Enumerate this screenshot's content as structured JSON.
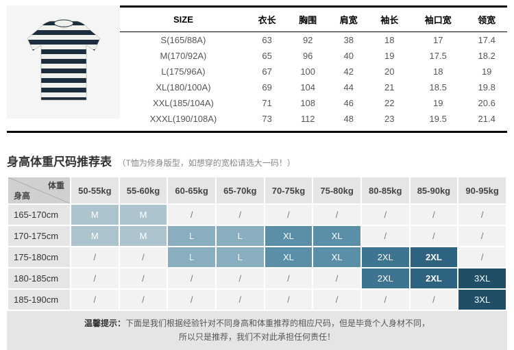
{
  "size_table": {
    "columns": [
      "SIZE",
      "衣长",
      "胸围",
      "肩宽",
      "袖长",
      "袖口宽",
      "领宽"
    ],
    "rows": [
      [
        "S(165/88A)",
        "63",
        "92",
        "38",
        "18",
        "17",
        "17.4"
      ],
      [
        "M(170/92A)",
        "65",
        "96",
        "40",
        "19",
        "17.5",
        "18.2"
      ],
      [
        "L(175/96A)",
        "67",
        "100",
        "42",
        "20",
        "18",
        "19"
      ],
      [
        "XL(180/100A)",
        "69",
        "104",
        "44",
        "21",
        "18.5",
        "19.8"
      ],
      [
        "XXL(185/104A)",
        "71",
        "108",
        "46",
        "22",
        "19",
        "20.6"
      ],
      [
        "XXXL(190/108A)",
        "73",
        "112",
        "48",
        "23",
        "19.5",
        "21.4"
      ]
    ]
  },
  "rec": {
    "title": "身高体重尺码推荐表",
    "subtitle": "（T恤为修身版型，如想穿的宽松请选大一码！）",
    "corner_weight": "体重",
    "corner_height": "身高",
    "weight_headers": [
      "50-55kg",
      "55-60kg",
      "60-65kg",
      "65-70kg",
      "70-75kg",
      "75-80kg",
      "80-85kg",
      "85-90kg",
      "90-95kg"
    ],
    "height_rows": [
      "165-170cm",
      "170-175cm",
      "175-180cm",
      "180-185cm",
      "185-190cm"
    ],
    "cells": [
      [
        {
          "v": "M",
          "c": "c-m"
        },
        {
          "v": "M",
          "c": "c-m"
        },
        {
          "v": "/",
          "c": "c-none"
        },
        {
          "v": "/",
          "c": "c-none"
        },
        {
          "v": "/",
          "c": "c-none"
        },
        {
          "v": "/",
          "c": "c-none"
        },
        {
          "v": "/",
          "c": "c-none"
        },
        {
          "v": "/",
          "c": "c-none"
        },
        {
          "v": "/",
          "c": "c-none"
        }
      ],
      [
        {
          "v": "M",
          "c": "c-m"
        },
        {
          "v": "M",
          "c": "c-m"
        },
        {
          "v": "L",
          "c": "c-l"
        },
        {
          "v": "L",
          "c": "c-l"
        },
        {
          "v": "XL",
          "c": "c-xl"
        },
        {
          "v": "XL",
          "c": "c-xl"
        },
        {
          "v": "/",
          "c": "c-none"
        },
        {
          "v": "/",
          "c": "c-none"
        },
        {
          "v": "/",
          "c": "c-none"
        }
      ],
      [
        {
          "v": "/",
          "c": "c-none"
        },
        {
          "v": "/",
          "c": "c-none"
        },
        {
          "v": "L",
          "c": "c-l"
        },
        {
          "v": "L",
          "c": "c-l"
        },
        {
          "v": "XL",
          "c": "c-xl"
        },
        {
          "v": "XL",
          "c": "c-xl"
        },
        {
          "v": "2XL",
          "c": "c-2xl"
        },
        {
          "v": "2XL",
          "c": "c-2xlb"
        },
        {
          "v": "/",
          "c": "c-none"
        }
      ],
      [
        {
          "v": "/",
          "c": "c-none"
        },
        {
          "v": "/",
          "c": "c-none"
        },
        {
          "v": "/",
          "c": "c-none"
        },
        {
          "v": "/",
          "c": "c-none"
        },
        {
          "v": "/",
          "c": "c-none"
        },
        {
          "v": "/",
          "c": "c-none"
        },
        {
          "v": "2XL",
          "c": "c-2xl"
        },
        {
          "v": "2XL",
          "c": "c-2xlb"
        },
        {
          "v": "3XL",
          "c": "c-3xl"
        }
      ],
      [
        {
          "v": "/",
          "c": "c-none"
        },
        {
          "v": "/",
          "c": "c-none"
        },
        {
          "v": "/",
          "c": "c-none"
        },
        {
          "v": "/",
          "c": "c-none"
        },
        {
          "v": "/",
          "c": "c-none"
        },
        {
          "v": "/",
          "c": "c-none"
        },
        {
          "v": "/",
          "c": "c-none"
        },
        {
          "v": "/",
          "c": "c-none"
        },
        {
          "v": "3XL",
          "c": "c-3xl"
        }
      ]
    ],
    "tip_label": "温馨提示：",
    "tip_line1": "下面是我们根据经验针对不同身高和体重推荐的相应尺码，但是毕竟个人身材不同，",
    "tip_line2": "所以只是推荐，我们不对此承担任何责任！"
  },
  "colors": {
    "stripe_dark": "#1c2e3e",
    "stripe_light": "#f0f0ec"
  }
}
